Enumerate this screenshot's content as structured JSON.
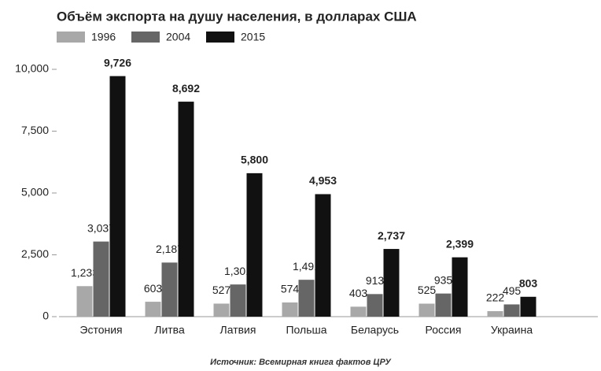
{
  "chart_data": {
    "type": "bar",
    "title": "Объём экспорта на душу населения, в долларах США",
    "source": "Источник: Всемирная книга фактов ЦРУ",
    "categories": [
      "Эстония",
      "Литва",
      "Латвия",
      "Польша",
      "Беларусь",
      "Россия",
      "Украина"
    ],
    "series": [
      {
        "name": "1996",
        "color": "#a8a8a8",
        "values": [
          1233,
          603,
          527,
          574,
          403,
          525,
          222
        ],
        "value_labels": [
          "1,233",
          "603",
          "527",
          "574",
          "403",
          "525",
          "222"
        ]
      },
      {
        "name": "2004",
        "color": "#666666",
        "values": [
          3037,
          2187,
          1301,
          1491,
          913,
          935,
          495
        ],
        "value_labels": [
          "3,037",
          "2,187",
          "1,301",
          "1,491",
          "913",
          "935",
          "495"
        ]
      },
      {
        "name": "2015",
        "color": "#111111",
        "values": [
          9726,
          8692,
          5800,
          4953,
          2737,
          2399,
          803
        ],
        "value_labels": [
          "9,726",
          "8,692",
          "5,800",
          "4,953",
          "2,737",
          "2,399",
          "803"
        ]
      }
    ],
    "ylim": [
      0,
      10000
    ],
    "yticks": [
      0,
      {
        "value": 2500,
        "label": "2,500"
      },
      {
        "value": 5000,
        "label": "5,000"
      },
      {
        "value": 7500,
        "label": "7,500"
      },
      {
        "value": 10000,
        "label": "10,000"
      }
    ],
    "grid": false
  }
}
